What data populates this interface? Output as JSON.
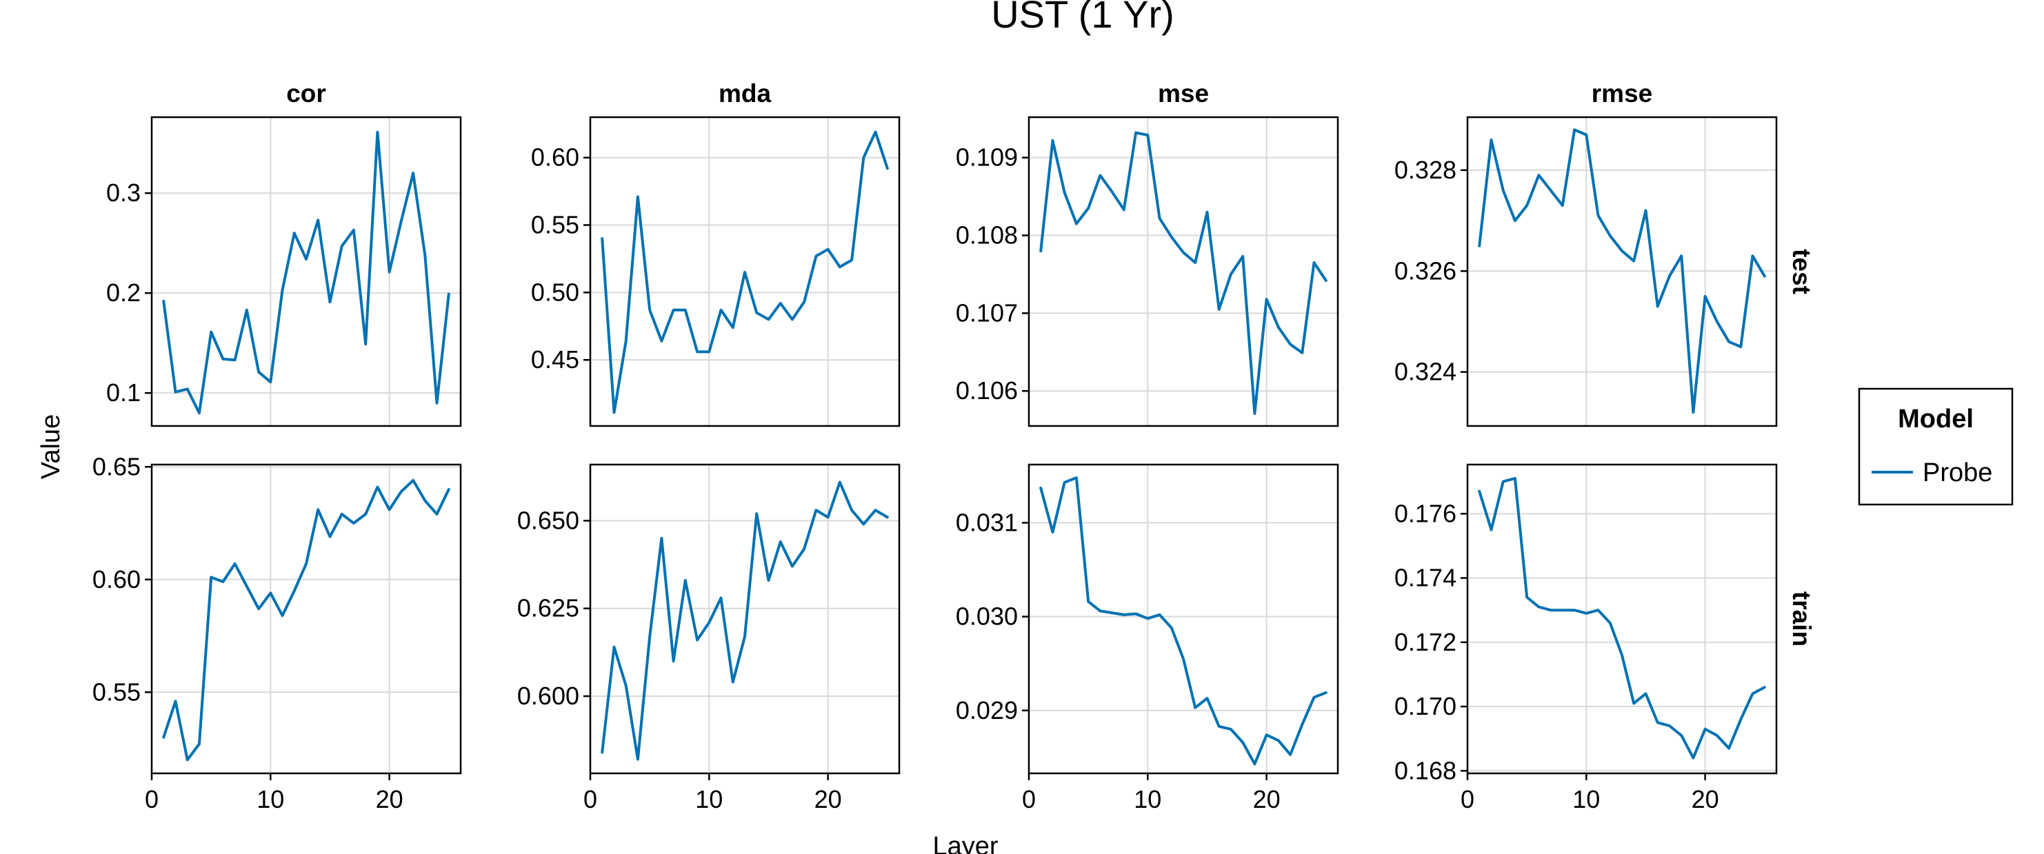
{
  "chart_data": {
    "type": "line",
    "title": "UST (1 Yr)",
    "xlabel": "Layer",
    "ylabel": "Value",
    "columns": [
      "cor",
      "mda",
      "mse",
      "rmse"
    ],
    "rows": [
      "test",
      "train"
    ],
    "legend": {
      "title": "Model",
      "placement": "right",
      "entries": [
        {
          "name": "Probe",
          "color": "#0072B2"
        }
      ]
    },
    "x": [
      1,
      2,
      3,
      4,
      5,
      6,
      7,
      8,
      9,
      10,
      11,
      12,
      13,
      14,
      15,
      16,
      17,
      18,
      19,
      20,
      21,
      22,
      23,
      24,
      25
    ],
    "xlim": [
      0,
      26
    ],
    "xticks": [
      0,
      10,
      20
    ],
    "grid": true,
    "panels": [
      {
        "column": "cor",
        "row": "test",
        "ylim": [
          0.067,
          0.376
        ],
        "yticks": [
          0.1,
          0.2,
          0.3
        ],
        "ytick_labels": [
          "0.1",
          "0.2",
          "0.3"
        ],
        "series": [
          {
            "name": "Probe",
            "values": [
              0.192,
              0.101,
              0.104,
              0.08,
              0.161,
              0.134,
              0.133,
              0.183,
              0.121,
              0.111,
              0.203,
              0.26,
              0.234,
              0.273,
              0.191,
              0.247,
              0.263,
              0.149,
              0.361,
              0.221,
              0.272,
              0.32,
              0.238,
              0.09,
              0.199
            ]
          }
        ]
      },
      {
        "column": "mda",
        "row": "test",
        "ylim": [
          0.401,
          0.63
        ],
        "yticks": [
          0.45,
          0.5,
          0.55,
          0.6
        ],
        "ytick_labels": [
          "0.45",
          "0.50",
          "0.55",
          "0.60"
        ],
        "series": [
          {
            "name": "Probe",
            "values": [
              0.54,
              0.411,
              0.464,
              0.571,
              0.487,
              0.464,
              0.487,
              0.487,
              0.456,
              0.456,
              0.487,
              0.474,
              0.515,
              0.485,
              0.48,
              0.492,
              0.48,
              0.493,
              0.527,
              0.532,
              0.519,
              0.524,
              0.6,
              0.619,
              0.592
            ]
          }
        ]
      },
      {
        "column": "mse",
        "row": "test",
        "ylim": [
          0.10555,
          0.10952
        ],
        "yticks": [
          0.106,
          0.107,
          0.108,
          0.109
        ],
        "ytick_labels": [
          "0.106",
          "0.107",
          "0.108",
          "0.109"
        ],
        "series": [
          {
            "name": "Probe",
            "values": [
              0.1078,
              0.10922,
              0.10855,
              0.10815,
              0.10835,
              0.10877,
              0.10856,
              0.10833,
              0.10932,
              0.10929,
              0.10822,
              0.10798,
              0.10778,
              0.10765,
              0.1083,
              0.10705,
              0.1075,
              0.10773,
              0.10571,
              0.10718,
              0.10682,
              0.1066,
              0.10649,
              0.10765,
              0.10742
            ]
          }
        ]
      },
      {
        "column": "rmse",
        "row": "test",
        "ylim": [
          0.32293,
          0.32905
        ],
        "yticks": [
          0.324,
          0.326,
          0.328
        ],
        "ytick_labels": [
          "0.324",
          "0.326",
          "0.328"
        ],
        "series": [
          {
            "name": "Probe",
            "values": [
              0.3265,
              0.3286,
              0.3276,
              0.327,
              0.3273,
              0.3279,
              0.3276,
              0.3273,
              0.3288,
              0.3287,
              0.3271,
              0.3267,
              0.3264,
              0.3262,
              0.3272,
              0.3253,
              0.3259,
              0.3263,
              0.3232,
              0.3255,
              0.325,
              0.3246,
              0.3245,
              0.3263,
              0.3259
            ]
          }
        ]
      },
      {
        "column": "cor",
        "row": "train",
        "ylim": [
          0.514,
          0.651
        ],
        "yticks": [
          0.55,
          0.6,
          0.65
        ],
        "ytick_labels": [
          "0.55",
          "0.60",
          "0.65"
        ],
        "series": [
          {
            "name": "Probe",
            "values": [
              0.53,
              0.546,
              0.52,
              0.527,
              0.601,
              0.599,
              0.607,
              0.597,
              0.587,
              0.594,
              0.584,
              0.595,
              0.607,
              0.631,
              0.619,
              0.629,
              0.625,
              0.629,
              0.641,
              0.631,
              0.639,
              0.644,
              0.635,
              0.629,
              0.64
            ]
          }
        ]
      },
      {
        "column": "mda",
        "row": "train",
        "ylim": [
          0.578,
          0.666
        ],
        "yticks": [
          0.6,
          0.625,
          0.65
        ],
        "ytick_labels": [
          "0.600",
          "0.625",
          "0.650"
        ],
        "series": [
          {
            "name": "Probe",
            "values": [
              0.584,
              0.614,
              0.603,
              0.582,
              0.617,
              0.645,
              0.61,
              0.633,
              0.616,
              0.621,
              0.628,
              0.604,
              0.617,
              0.652,
              0.633,
              0.644,
              0.637,
              0.642,
              0.653,
              0.651,
              0.661,
              0.653,
              0.649,
              0.653,
              0.651
            ]
          }
        ]
      },
      {
        "column": "mse",
        "row": "train",
        "ylim": [
          0.02833,
          0.03162
        ],
        "yticks": [
          0.029,
          0.03,
          0.031
        ],
        "ytick_labels": [
          "0.029",
          "0.030",
          "0.031"
        ],
        "series": [
          {
            "name": "Probe",
            "values": [
              0.03137,
              0.0309,
              0.03143,
              0.03148,
              0.03016,
              0.03006,
              0.03004,
              0.03002,
              0.03003,
              0.02998,
              0.03002,
              0.02988,
              0.02955,
              0.02903,
              0.02913,
              0.02883,
              0.0288,
              0.02866,
              0.02843,
              0.02874,
              0.02868,
              0.02853,
              0.02885,
              0.02914,
              0.02919
            ]
          }
        ]
      },
      {
        "column": "rmse",
        "row": "train",
        "ylim": [
          0.16792,
          0.17753
        ],
        "yticks": [
          0.168,
          0.17,
          0.172,
          0.174,
          0.176
        ],
        "ytick_labels": [
          "0.168",
          "0.170",
          "0.172",
          "0.174",
          "0.176"
        ],
        "series": [
          {
            "name": "Probe",
            "values": [
              0.1767,
              0.1755,
              0.177,
              0.1771,
              0.1734,
              0.1731,
              0.173,
              0.173,
              0.173,
              0.1729,
              0.173,
              0.1726,
              0.1716,
              0.1701,
              0.1704,
              0.1695,
              0.1694,
              0.1691,
              0.1684,
              0.1693,
              0.1691,
              0.1687,
              0.1696,
              0.1704,
              0.1706
            ]
          }
        ]
      }
    ]
  }
}
